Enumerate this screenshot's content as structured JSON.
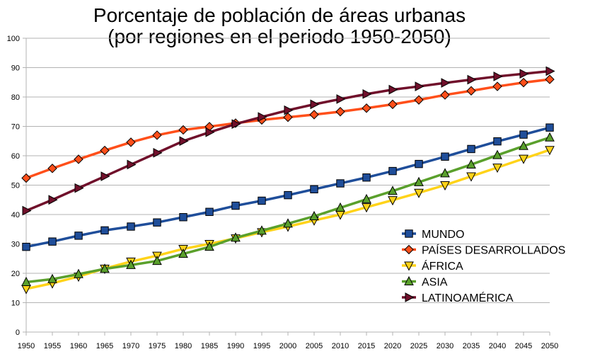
{
  "title_line1": "Porcentaje de población de áreas urbanas",
  "title_line2": "(por regiones en el periodo 1950-2050)",
  "chart_data": {
    "type": "line",
    "title": "Porcentaje de población de áreas urbanas (por regiones en el periodo 1950-2050)",
    "xlabel": "",
    "ylabel": "",
    "x": [
      1950,
      1955,
      1960,
      1965,
      1970,
      1975,
      1980,
      1985,
      1990,
      1995,
      2000,
      2005,
      2010,
      2015,
      2020,
      2025,
      2030,
      2035,
      2040,
      2045,
      2050
    ],
    "ylim": [
      0,
      100
    ],
    "yticks": [
      0,
      10,
      20,
      30,
      40,
      50,
      60,
      70,
      80,
      90,
      100
    ],
    "grid": "horizontal",
    "legend_position": "bottom-right",
    "series": [
      {
        "name": "MUNDO",
        "color": "#1f4e9a",
        "marker": "square",
        "values": [
          29.0,
          30.8,
          32.8,
          34.6,
          35.9,
          37.3,
          39.1,
          40.9,
          43.0,
          44.7,
          46.6,
          48.6,
          50.6,
          52.6,
          54.8,
          57.2,
          59.7,
          62.3,
          64.9,
          67.2,
          69.6
        ]
      },
      {
        "name": "PAÍSES DESARROLLADOS",
        "color": "#ff4f1a",
        "marker": "diamond",
        "values": [
          52.4,
          55.7,
          58.8,
          61.8,
          64.6,
          67.0,
          68.8,
          69.9,
          71.1,
          72.2,
          73.1,
          74.0,
          75.0,
          76.2,
          77.5,
          79.0,
          80.7,
          82.1,
          83.6,
          84.9,
          86.0
        ]
      },
      {
        "name": "ÁFRICA",
        "color": "#ffd319",
        "marker": "triangle-down",
        "values": [
          14.7,
          16.6,
          18.9,
          21.6,
          24.0,
          26.0,
          28.3,
          30.0,
          31.9,
          34.0,
          35.9,
          38.0,
          40.0,
          42.5,
          44.9,
          47.4,
          50.0,
          53.0,
          56.0,
          59.0,
          62.0
        ]
      },
      {
        "name": "ASIA",
        "color": "#5aa02c",
        "marker": "triangle-up",
        "values": [
          17.0,
          18.0,
          19.7,
          21.5,
          22.8,
          24.2,
          26.6,
          29.0,
          32.1,
          34.5,
          36.9,
          39.4,
          42.3,
          45.2,
          48.0,
          51.0,
          54.0,
          57.0,
          60.2,
          63.3,
          66.2
        ]
      },
      {
        "name": "LATINOAMÉRICA",
        "color": "#70102b",
        "marker": "triangle-right",
        "values": [
          41.3,
          45.0,
          49.0,
          53.0,
          57.0,
          61.0,
          65.0,
          68.0,
          70.8,
          73.2,
          75.5,
          77.5,
          79.3,
          81.0,
          82.5,
          83.6,
          84.8,
          85.9,
          87.0,
          87.9,
          88.8
        ]
      }
    ]
  }
}
